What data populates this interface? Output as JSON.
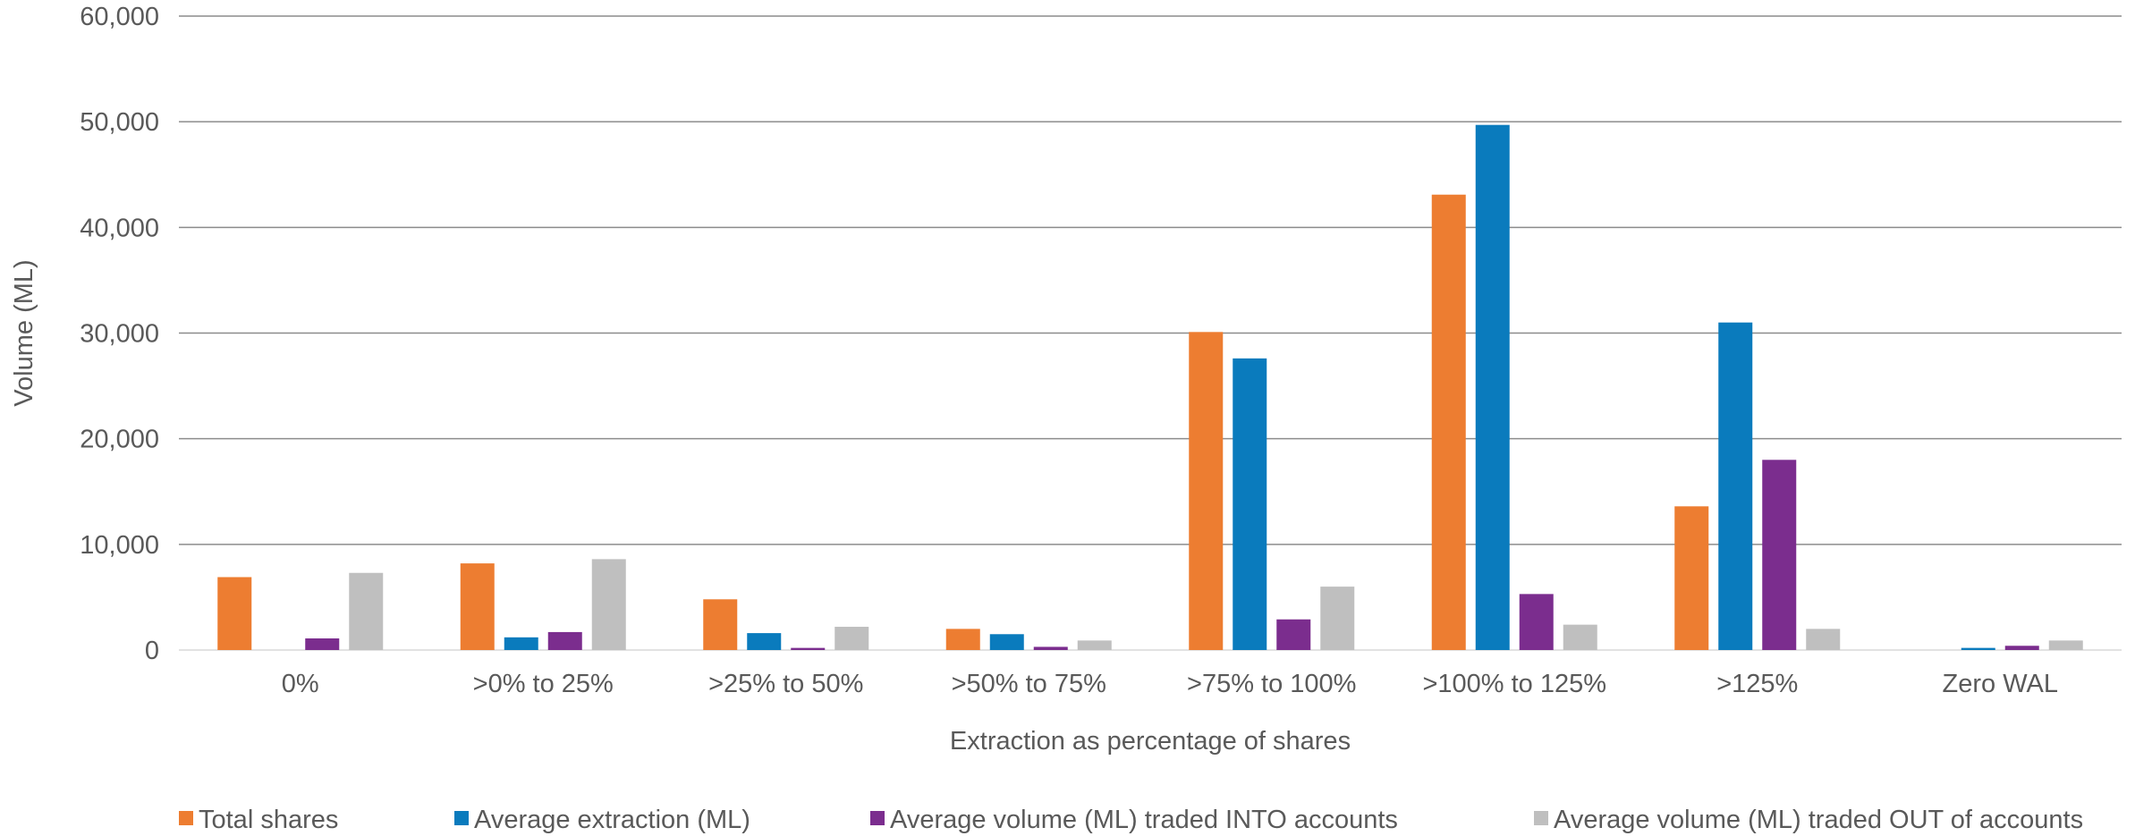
{
  "chart_data": {
    "type": "bar",
    "title": "",
    "xlabel": "Extraction as percentage of shares",
    "ylabel": "Volume (ML)",
    "ylim": [
      0,
      60000
    ],
    "yticks": [
      0,
      10000,
      20000,
      30000,
      40000,
      50000,
      60000
    ],
    "ytick_labels": [
      "0",
      "10,000",
      "20,000",
      "30,000",
      "40,000",
      "50,000",
      "60,000"
    ],
    "grid": true,
    "legend_position": "bottom",
    "categories": [
      "0%",
      ">0% to 25%",
      ">25% to 50%",
      ">50% to 75%",
      ">75% to 100%",
      ">100% to 125%",
      ">125%",
      "Zero WAL"
    ],
    "series": [
      {
        "name": "Total shares",
        "color": "#ED7D31",
        "values": [
          6900,
          8200,
          4800,
          2000,
          30100,
          43100,
          13600,
          0
        ]
      },
      {
        "name": "Average extraction (ML)",
        "color": "#0A7BBD",
        "values": [
          0,
          1200,
          1600,
          1500,
          27600,
          49700,
          31000,
          200
        ]
      },
      {
        "name": "Average volume (ML) traded INTO accounts",
        "color": "#7B2D8E",
        "values": [
          1100,
          1700,
          200,
          300,
          2900,
          5300,
          18000,
          400
        ]
      },
      {
        "name": "Average volume (ML) traded OUT of accounts",
        "color": "#BFBFBF",
        "values": [
          7300,
          8600,
          2200,
          900,
          6000,
          2400,
          2000,
          900
        ]
      }
    ]
  }
}
